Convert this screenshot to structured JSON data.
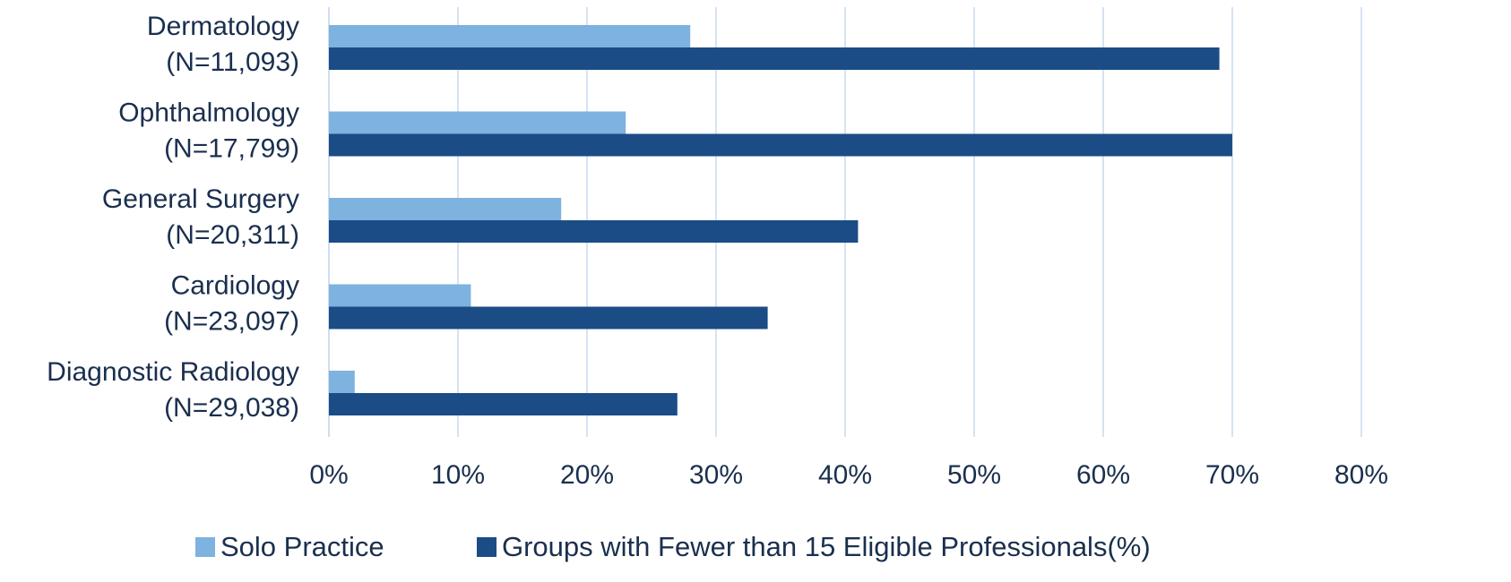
{
  "chart_data": {
    "type": "bar",
    "orientation": "horizontal",
    "categories": [
      [
        "Dermatology",
        "(N=11,093)"
      ],
      [
        "Ophthalmology",
        "(N=17,799)"
      ],
      [
        "General Surgery",
        "(N=20,311)"
      ],
      [
        "Cardiology",
        "(N=23,097)"
      ],
      [
        "Diagnostic Radiology",
        "(N=29,038)"
      ]
    ],
    "series": [
      {
        "name": "Solo Practice",
        "values": [
          28,
          23,
          18,
          11,
          2
        ],
        "color": "#7eb2df"
      },
      {
        "name": "Groups with Fewer than 15 Eligible Professionals(%)",
        "values": [
          69,
          70,
          41,
          34,
          27
        ],
        "color": "#1b4c86"
      }
    ],
    "xticks": [
      "0%",
      "10%",
      "20%",
      "30%",
      "40%",
      "50%",
      "60%",
      "70%",
      "80%"
    ],
    "xlim": [
      0,
      80
    ],
    "grid": "vertical",
    "gridColor": "#c9daf0",
    "legend": "bottom",
    "title": "",
    "xlabel": "",
    "ylabel": ""
  }
}
